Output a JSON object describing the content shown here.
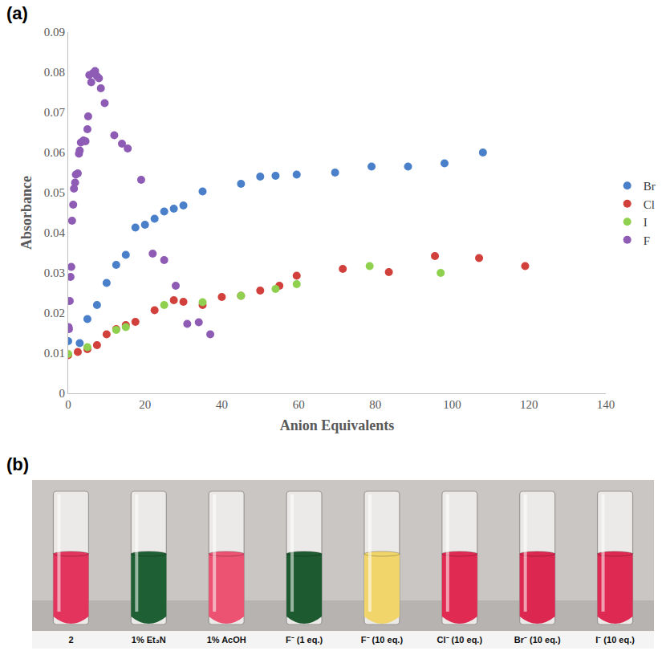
{
  "chart_data": {
    "type": "scatter",
    "panel_label": "(a)",
    "x_label": "Anion Equivalents",
    "y_label": "Absorbance",
    "xlim": [
      0,
      140
    ],
    "xticks": [
      0,
      20,
      40,
      60,
      80,
      100,
      120,
      140
    ],
    "ylim": [
      0,
      0.09
    ],
    "yticks": [
      0,
      0.01,
      0.02,
      0.03,
      0.04,
      0.05,
      0.06,
      0.07,
      0.08,
      0.09
    ],
    "grid": false,
    "legend": "right",
    "marker": "circle",
    "series": [
      {
        "name": "Br",
        "color": "#4a7fc9",
        "x": [
          0,
          3,
          5,
          7.5,
          10,
          12.5,
          15,
          17.5,
          20,
          22.5,
          25,
          27.5,
          30,
          35,
          45,
          50,
          54,
          59.5,
          69.5,
          79,
          88.5,
          98,
          108
        ],
        "values": [
          0.013,
          0.0125,
          0.0185,
          0.022,
          0.0275,
          0.032,
          0.0345,
          0.0413,
          0.042,
          0.0435,
          0.0453,
          0.046,
          0.0468,
          0.0503,
          0.0522,
          0.054,
          0.0542,
          0.0545,
          0.055,
          0.0565,
          0.0565,
          0.0573,
          0.06
        ]
      },
      {
        "name": "Cl",
        "color": "#d2403c",
        "x": [
          0,
          2.5,
          5,
          7.5,
          10,
          12.5,
          15,
          17.5,
          22.5,
          27.5,
          30,
          35,
          40,
          45,
          50,
          55,
          59.5,
          71.5,
          83.5,
          95.5,
          107,
          119
        ],
        "values": [
          0.0095,
          0.0103,
          0.011,
          0.012,
          0.0147,
          0.016,
          0.017,
          0.0178,
          0.0207,
          0.0232,
          0.0228,
          0.022,
          0.024,
          0.0243,
          0.0256,
          0.0268,
          0.0293,
          0.031,
          0.0302,
          0.0342,
          0.0337,
          0.0317
        ]
      },
      {
        "name": "I",
        "color": "#8fd14f",
        "x": [
          0,
          5,
          12.5,
          15,
          25,
          35,
          45,
          54,
          59.5,
          78.5,
          97
        ],
        "values": [
          0.0098,
          0.0115,
          0.0158,
          0.0165,
          0.022,
          0.0227,
          0.0243,
          0.026,
          0.0272,
          0.0317,
          0.03
        ]
      },
      {
        "name": "F",
        "color": "#8e5bb5",
        "x": [
          0.1,
          0.2,
          0.4,
          0.6,
          0.8,
          1,
          1.3,
          1.5,
          1.8,
          2,
          2.5,
          2.8,
          3,
          3.3,
          4,
          4.5,
          5,
          5.2,
          5.5,
          6,
          6.5,
          7,
          7.5,
          8,
          8.5,
          9.5,
          12,
          14,
          15.5,
          19,
          22,
          25,
          28,
          31,
          34,
          37
        ],
        "values": [
          0.0165,
          0.016,
          0.023,
          0.029,
          0.0315,
          0.043,
          0.047,
          0.051,
          0.0525,
          0.0545,
          0.0548,
          0.0597,
          0.0605,
          0.0625,
          0.063,
          0.0628,
          0.0658,
          0.069,
          0.0793,
          0.0775,
          0.0798,
          0.0803,
          0.079,
          0.0785,
          0.076,
          0.0723,
          0.0643,
          0.0622,
          0.061,
          0.0532,
          0.0348,
          0.0332,
          0.0268,
          0.0173,
          0.0177,
          0.0147
        ]
      }
    ]
  },
  "photo": {
    "panel_label": "(b)",
    "vials": [
      {
        "label": "2",
        "color": "#e2345c"
      },
      {
        "label": "1% Et₃N",
        "color": "#1e5f33"
      },
      {
        "label": "1% AcOH",
        "color": "#ec5272"
      },
      {
        "label": "F⁻ (1 eq.)",
        "color": "#1d5a2f"
      },
      {
        "label": "F⁻ (10 eq.)",
        "color": "#f1d56a"
      },
      {
        "label": "Cl⁻ (10 eq.)",
        "color": "#e02a52"
      },
      {
        "label": "Br⁻ (10 eq.)",
        "color": "#dc2850"
      },
      {
        "label": "I⁻ (10 eq.)",
        "color": "#de2a52"
      }
    ]
  }
}
